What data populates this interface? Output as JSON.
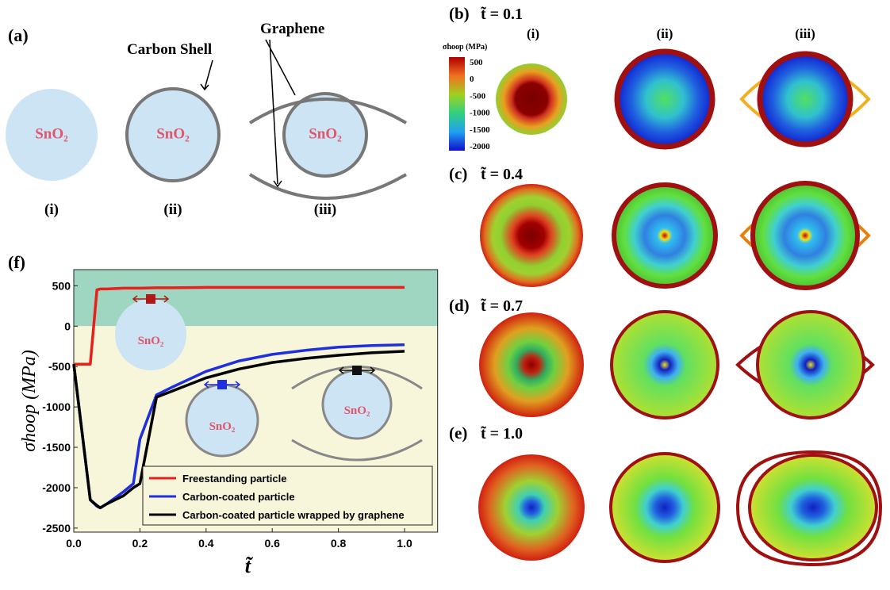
{
  "panel_a": {
    "label": "(a)",
    "items": [
      {
        "label": "(i)",
        "core": "SnO₂"
      },
      {
        "label": "(ii)",
        "core": "SnO₂",
        "annotation": "Carbon Shell"
      },
      {
        "label": "(iii)",
        "core": "SnO₂",
        "annotation": "Graphene"
      }
    ]
  },
  "stress_maps": {
    "colorbar": {
      "title": "σhoop (MPa)",
      "ticks": [
        500,
        0,
        -500,
        -1000,
        -1500,
        -2000
      ]
    },
    "columns": [
      "(i)",
      "(ii)",
      "(iii)"
    ],
    "rows": [
      {
        "label": "(b)",
        "time": "t̃ = 0.1"
      },
      {
        "label": "(c)",
        "time": "t̃ = 0.4"
      },
      {
        "label": "(d)",
        "time": "t̃ = 0.7"
      },
      {
        "label": "(e)",
        "time": "t̃ = 1.0"
      }
    ]
  },
  "chart_data": {
    "type": "line",
    "panel_label": "(f)",
    "x_label": "t̃",
    "y_label": "σhoop (MPa)",
    "annotations": [
      "SnO₂",
      "SnO₂",
      "SnO₂"
    ],
    "x": [
      0,
      0.05,
      0.07,
      0.08,
      0.1,
      0.15,
      0.18,
      0.2,
      0.25,
      0.3,
      0.4,
      0.5,
      0.6,
      0.7,
      0.8,
      0.9,
      1.0
    ],
    "series": [
      {
        "name": "Freestanding particle",
        "color": "#e8201c",
        "values": [
          -470,
          -470,
          450,
          460,
          460,
          470,
          470,
          470,
          475,
          475,
          480,
          480,
          480,
          480,
          480,
          480,
          480
        ]
      },
      {
        "name": "Carbon-coated particle",
        "color": "#1f2fe0",
        "values": [
          -470,
          -2150,
          -2230,
          -2250,
          -2200,
          -2050,
          -1950,
          -1400,
          -850,
          -750,
          -560,
          -430,
          -350,
          -300,
          -260,
          -240,
          -230
        ]
      },
      {
        "name": "Carbon-coated particle wrapped by graphene",
        "color": "#000000",
        "values": [
          -470,
          -2150,
          -2220,
          -2250,
          -2200,
          -2100,
          -2000,
          -1950,
          -880,
          -800,
          -640,
          -530,
          -450,
          -400,
          -360,
          -330,
          -310
        ]
      }
    ],
    "xlim": [
      0,
      1.1
    ],
    "ylim": [
      -2550,
      700
    ],
    "xticks": [
      {
        "value": 0,
        "label": "0.0"
      },
      0.2,
      0.4,
      0.6,
      0.8,
      {
        "value": 1,
        "label": "1.0"
      }
    ],
    "yticks": [
      500,
      0,
      -500,
      -1000,
      -1500,
      -2000,
      -2500
    ],
    "band_colors": [
      "#9fd6c2",
      "#f8f6da"
    ]
  }
}
